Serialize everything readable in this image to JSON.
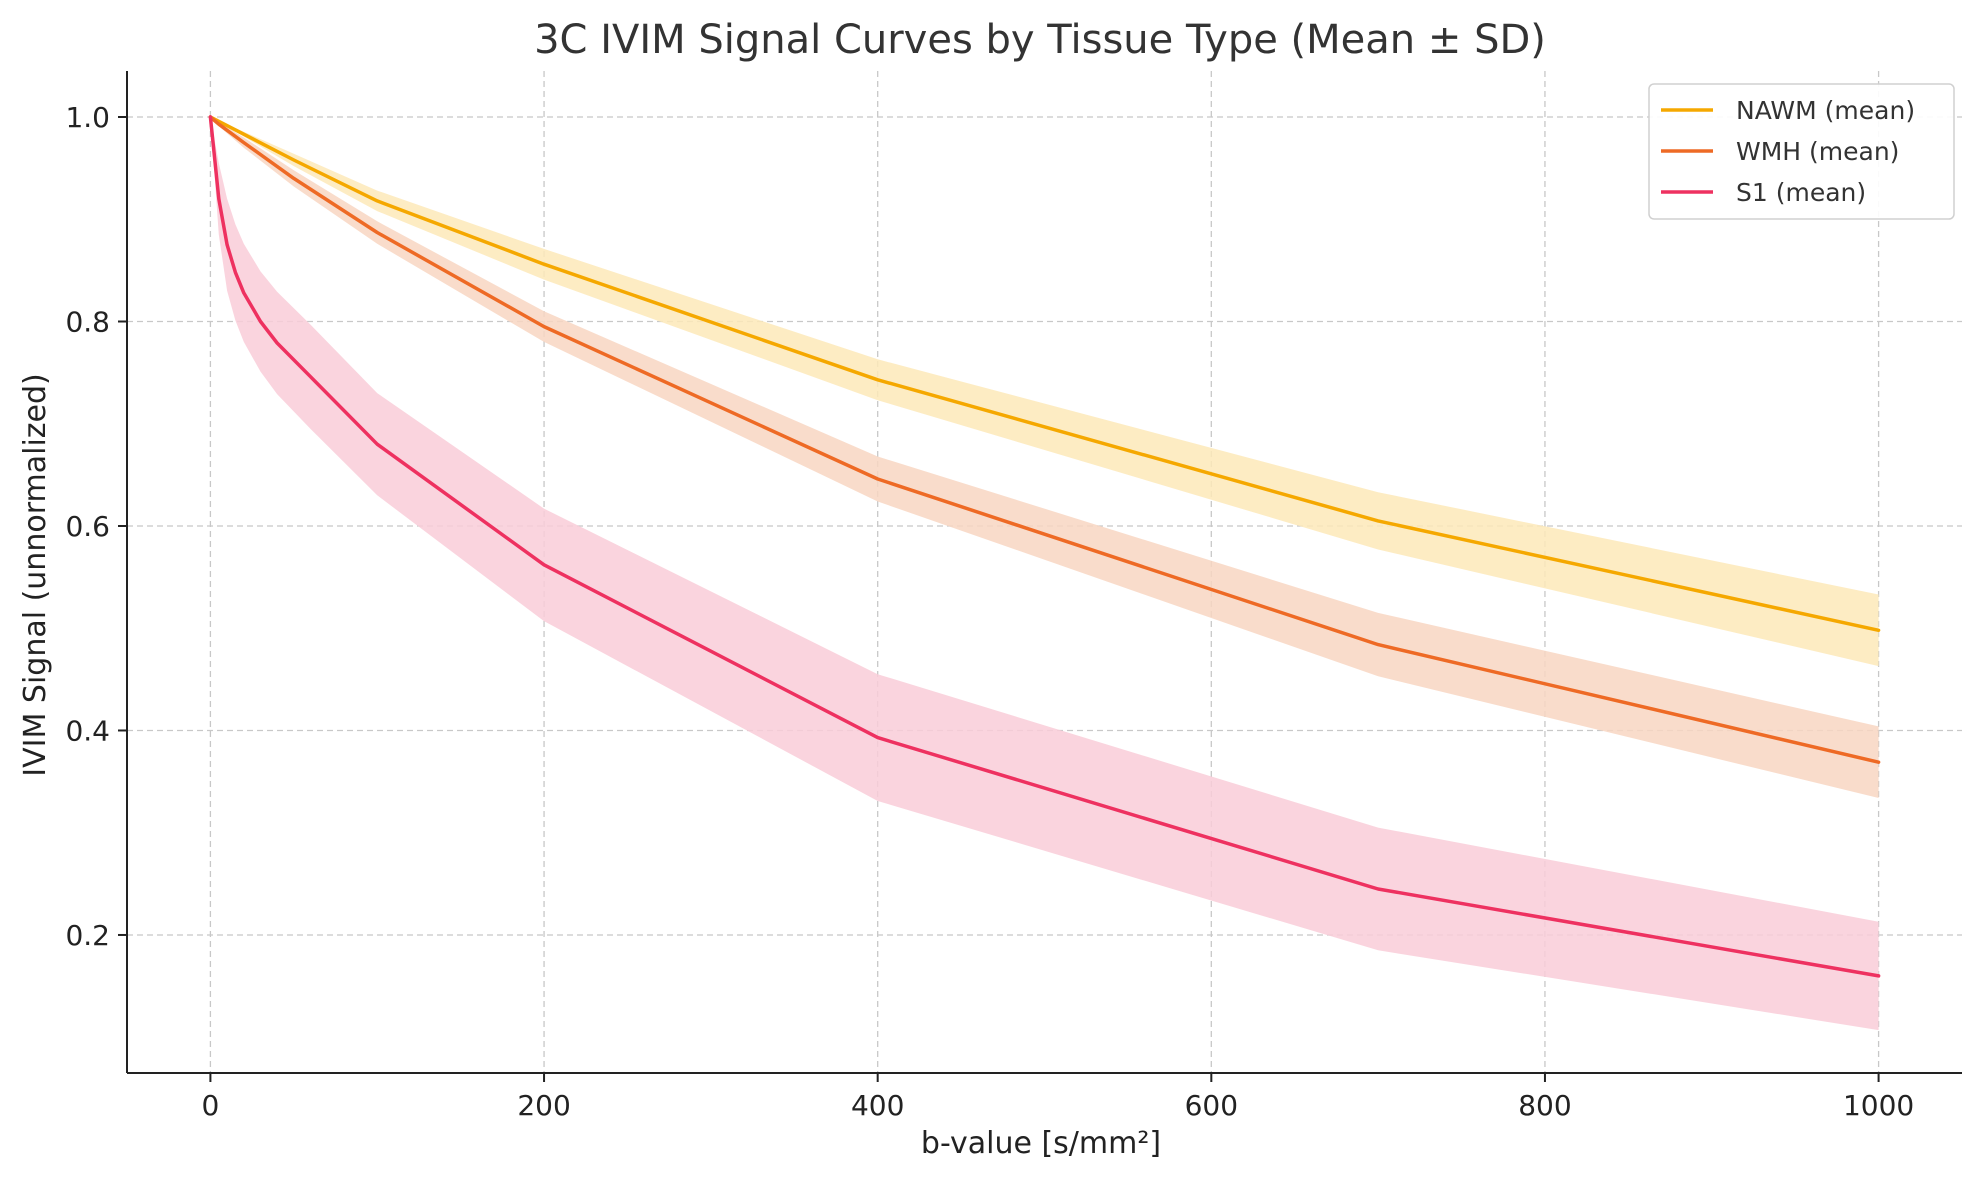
{
  "chart_data": {
    "type": "line",
    "title": "3C IVIM Signal Curves by Tissue Type (Mean ± SD)",
    "xlabel": "b-value [s/mm²]",
    "ylabel": "IVIM Signal (unnormalized)",
    "xlim": [
      -50,
      1050
    ],
    "ylim": [
      0.065,
      1.045
    ],
    "xticks": [
      0,
      200,
      400,
      600,
      800,
      1000
    ],
    "xtick_labels": [
      "0",
      "200",
      "400",
      "600",
      "800",
      "1000"
    ],
    "yticks": [
      0.2,
      0.4,
      0.6,
      0.8,
      1.0
    ],
    "ytick_labels": [
      "0.2",
      "0.4",
      "0.6",
      "0.8",
      "1.0"
    ],
    "grid": true,
    "grid_style": "dashed",
    "legend_position": "top-right",
    "series": [
      {
        "name": "NAWM (mean)",
        "color": "#f5a800",
        "band_color": "#fde9b8",
        "x": [
          0,
          50,
          100,
          200,
          400,
          700,
          1000
        ],
        "values": [
          1.0,
          0.958,
          0.918,
          0.856,
          0.743,
          0.605,
          0.498
        ],
        "sd": [
          0.0,
          0.006,
          0.01,
          0.015,
          0.02,
          0.028,
          0.035
        ]
      },
      {
        "name": "WMH (mean)",
        "color": "#ee6a25",
        "band_color": "#f8d6c2",
        "x": [
          0,
          5,
          10,
          20,
          50,
          100,
          200,
          400,
          700,
          1000
        ],
        "values": [
          1.0,
          0.993,
          0.987,
          0.975,
          0.94,
          0.887,
          0.795,
          0.646,
          0.484,
          0.369
        ],
        "sd": [
          0.0,
          0.002,
          0.003,
          0.005,
          0.008,
          0.011,
          0.015,
          0.022,
          0.031,
          0.035
        ]
      },
      {
        "name": "S1 (mean)",
        "color": "#ee3160",
        "band_color": "#f9cdd8",
        "x": [
          0,
          5,
          10,
          15,
          20,
          30,
          40,
          60,
          100,
          200,
          400,
          700,
          1000
        ],
        "values": [
          1.0,
          0.92,
          0.875,
          0.848,
          0.828,
          0.8,
          0.779,
          0.746,
          0.68,
          0.562,
          0.393,
          0.245,
          0.16
        ],
        "sd": [
          0.0,
          0.035,
          0.045,
          0.047,
          0.048,
          0.049,
          0.05,
          0.051,
          0.05,
          0.055,
          0.062,
          0.06,
          0.053
        ]
      }
    ]
  }
}
